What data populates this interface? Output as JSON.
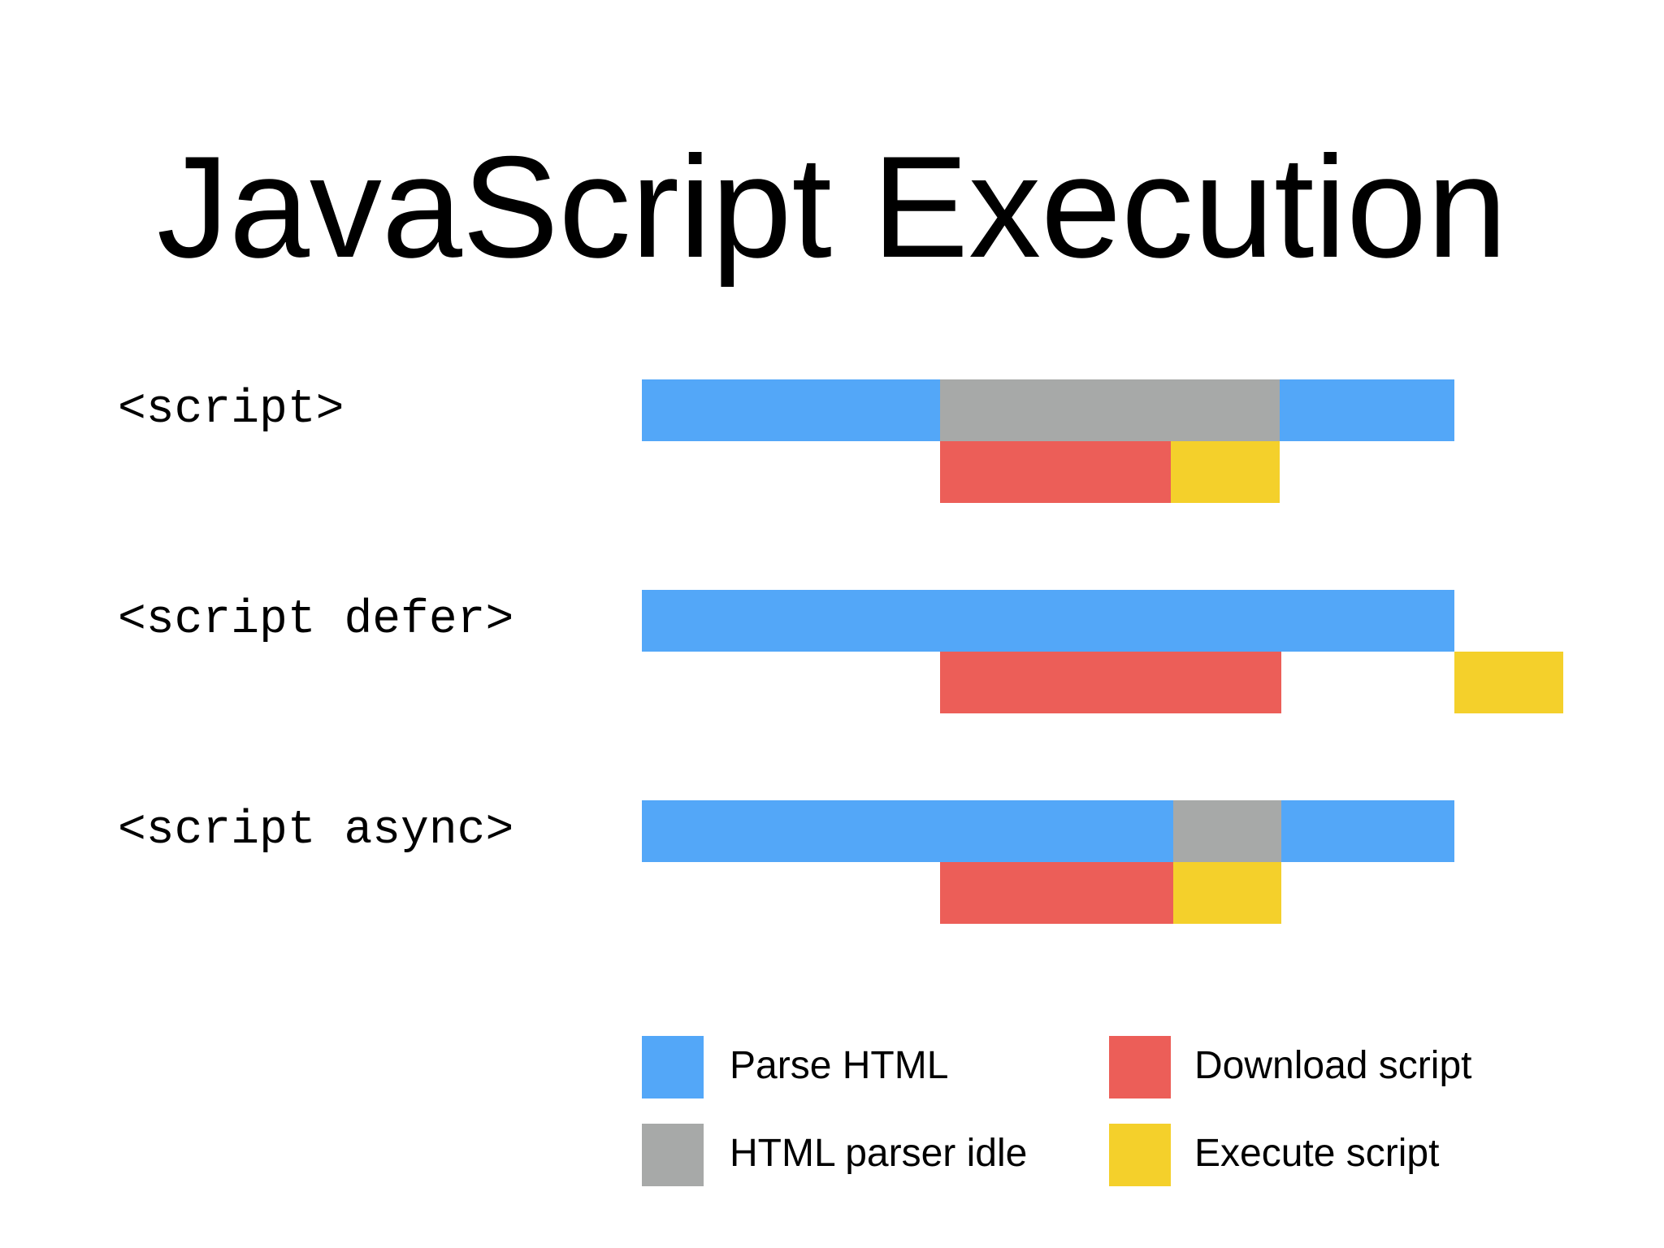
{
  "title": "JavaScript Execution",
  "colors": {
    "parse": "#53a7f8",
    "idle": "#a7a9a8",
    "download": "#ec5e58",
    "execute": "#f4d02b"
  },
  "rows": [
    {
      "label": "<script>",
      "segments": [
        {
          "phase": "parse",
          "lane": "parser",
          "start": 0,
          "end": 0.367
        },
        {
          "phase": "idle",
          "lane": "parser",
          "start": 0.367,
          "end": 0.785
        },
        {
          "phase": "parse",
          "lane": "parser",
          "start": 0.785,
          "end": 1.0
        },
        {
          "phase": "download",
          "lane": "script",
          "start": 0.367,
          "end": 0.651
        },
        {
          "phase": "execute",
          "lane": "script",
          "start": 0.651,
          "end": 0.785
        }
      ]
    },
    {
      "label": "<script defer>",
      "segments": [
        {
          "phase": "parse",
          "lane": "parser",
          "start": 0,
          "end": 1.0
        },
        {
          "phase": "download",
          "lane": "script",
          "start": 0.367,
          "end": 0.787
        },
        {
          "phase": "execute",
          "lane": "script",
          "start": 1.0,
          "end": 1.134
        }
      ]
    },
    {
      "label": "<script async>",
      "segments": [
        {
          "phase": "parse",
          "lane": "parser",
          "start": 0,
          "end": 0.654
        },
        {
          "phase": "idle",
          "lane": "parser",
          "start": 0.654,
          "end": 0.787
        },
        {
          "phase": "parse",
          "lane": "parser",
          "start": 0.787,
          "end": 1.0
        },
        {
          "phase": "download",
          "lane": "script",
          "start": 0.367,
          "end": 0.654
        },
        {
          "phase": "execute",
          "lane": "script",
          "start": 0.654,
          "end": 0.787
        }
      ]
    }
  ],
  "legend": [
    {
      "phase": "parse",
      "label": "Parse HTML"
    },
    {
      "phase": "download",
      "label": "Download script"
    },
    {
      "phase": "idle",
      "label": "HTML parser idle"
    },
    {
      "phase": "execute",
      "label": "Execute script"
    }
  ]
}
